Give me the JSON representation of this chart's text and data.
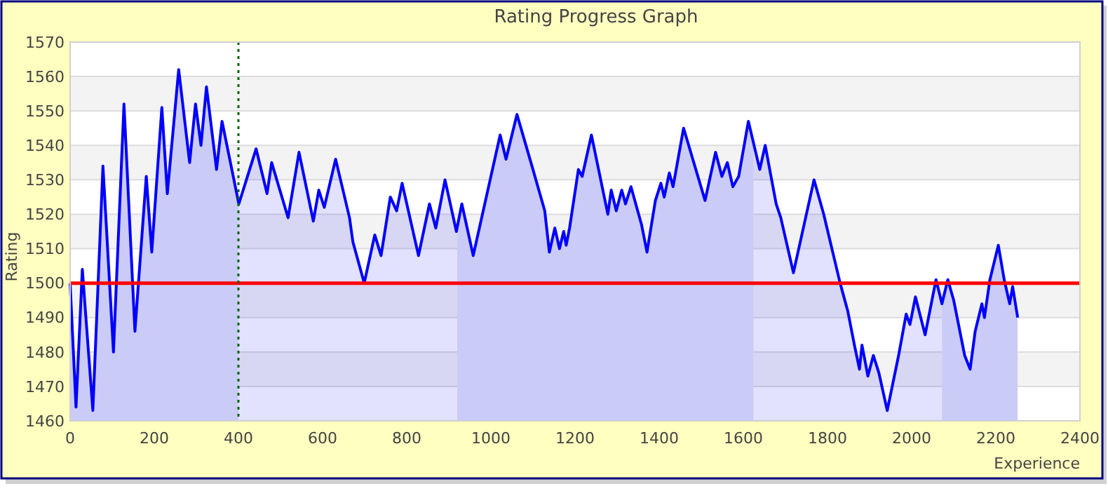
{
  "chart_data": {
    "type": "area",
    "title": "Rating Progress Graph",
    "xlabel": "Experience",
    "ylabel": "Rating",
    "xlim": [
      0,
      2400
    ],
    "xticks": [
      0,
      200,
      400,
      600,
      800,
      1000,
      1200,
      1400,
      1600,
      1800,
      2000,
      2200,
      2400
    ],
    "ylim": [
      1460,
      1570
    ],
    "yticks": [
      1460,
      1470,
      1480,
      1490,
      1500,
      1510,
      1520,
      1530,
      1540,
      1550,
      1560,
      1570
    ],
    "grid": "y",
    "series": [
      {
        "color": "#0000ff",
        "x": [
          0,
          14,
          29,
          54,
          78,
          103,
          128,
          154,
          181,
          194,
          218,
          231,
          258,
          284,
          298,
          311,
          324,
          348,
          361,
          401,
          442,
          468,
          479,
          518,
          544,
          578,
          591,
          604,
          631,
          664,
          672,
          699,
          724,
          739,
          761,
          776,
          789,
          828,
          854,
          869,
          891,
          918,
          931,
          958,
          1022,
          1036,
          1062,
          1100,
          1128,
          1139,
          1152,
          1163,
          1173,
          1179,
          1187,
          1208,
          1217,
          1239,
          1278,
          1286,
          1298,
          1311,
          1320,
          1333,
          1358,
          1371,
          1391,
          1404,
          1412,
          1424,
          1433,
          1458,
          1509,
          1534,
          1549,
          1562,
          1575,
          1589,
          1612,
          1639,
          1652,
          1678,
          1689,
          1719,
          1768,
          1791,
          1830,
          1848,
          1864,
          1876,
          1882,
          1896,
          1909,
          1922,
          1942,
          1969,
          1987,
          1996,
          2009,
          2032,
          2058,
          2072,
          2086,
          2100,
          2126,
          2139,
          2151,
          2167,
          2173,
          2186,
          2206,
          2220,
          2233,
          2240,
          2252
        ],
        "values": [
          1500,
          1464,
          1504,
          1463,
          1534,
          1480,
          1552,
          1486,
          1531,
          1509,
          1551,
          1526,
          1562,
          1535,
          1552,
          1540,
          1557,
          1533,
          1547,
          1523,
          1539,
          1526,
          1535,
          1519,
          1538,
          1518,
          1527,
          1522,
          1536,
          1519,
          1512,
          1500,
          1514,
          1508,
          1525,
          1521,
          1529,
          1508,
          1523,
          1516,
          1530,
          1515,
          1523,
          1508,
          1543,
          1536,
          1549,
          1533,
          1521,
          1509,
          1516,
          1510,
          1515,
          1511,
          1516,
          1533,
          1531,
          1543,
          1520,
          1527,
          1521,
          1527,
          1523,
          1528,
          1517,
          1509,
          1524,
          1529,
          1525,
          1532,
          1528,
          1545,
          1524,
          1538,
          1531,
          1535,
          1528,
          1531,
          1547,
          1533,
          1540,
          1523,
          1519,
          1503,
          1530,
          1520,
          1500,
          1492,
          1482,
          1475,
          1482,
          1473,
          1479,
          1474,
          1463,
          1479,
          1491,
          1488,
          1496,
          1485,
          1501,
          1494,
          1501,
          1495,
          1479,
          1475,
          1486,
          1494,
          1490,
          1501,
          1511,
          1501,
          1494,
          1499,
          1490
        ]
      }
    ],
    "ref_lines": [
      {
        "axis": "y",
        "value": 1500,
        "color": "#ff0000",
        "line_style": "solid"
      },
      {
        "axis": "x",
        "value": 400,
        "color": "#006600",
        "line_style": "dotted"
      }
    ],
    "bands": [
      {
        "axis": "x",
        "from": 0,
        "to": 400,
        "color": "#e6e6f7"
      },
      {
        "axis": "x",
        "from": 920,
        "to": 1624,
        "color": "#e6e6f7"
      },
      {
        "axis": "x",
        "from": 2072,
        "to": 2252,
        "color": "#e6e6f7"
      }
    ]
  }
}
